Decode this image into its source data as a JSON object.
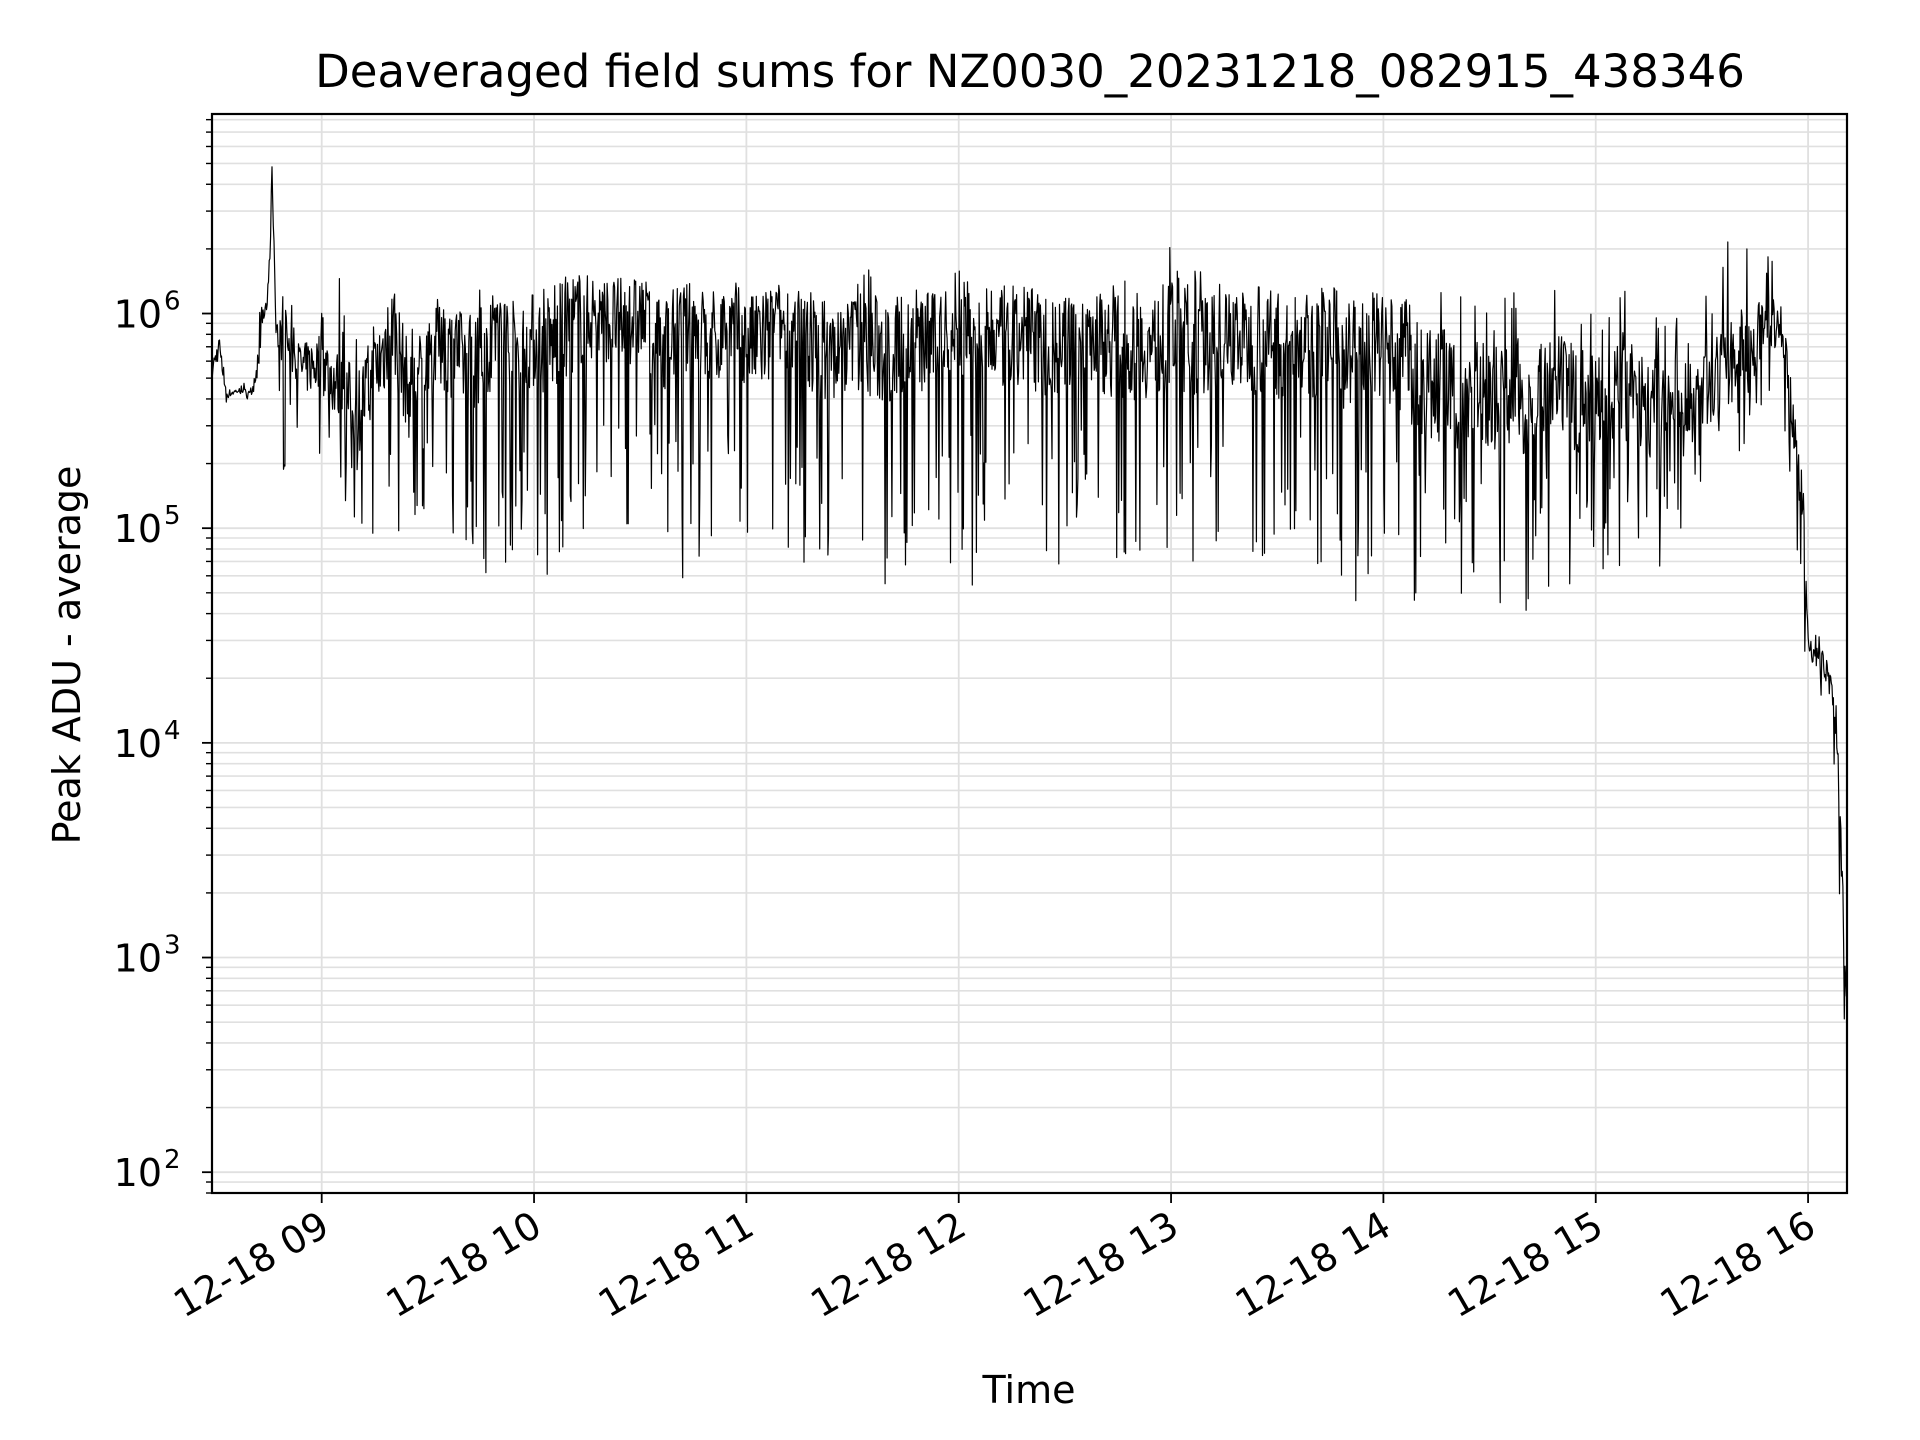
{
  "chart_data": {
    "type": "line",
    "title": "Deaveraged field sums for NZ0030_20231218_082915_438346",
    "xlabel": "Time",
    "ylabel": "Peak ADU - average",
    "yscale": "log",
    "ylim": [
      80,
      8500000
    ],
    "xlim": [
      "2023-12-18 08:29",
      "2023-12-18 16:11"
    ],
    "grid": true,
    "line_color": "#000000",
    "grid_color": "#e0e0e0",
    "x_ticks": [
      {
        "value": "2023-12-18 09:00",
        "label": "12-18 09"
      },
      {
        "value": "2023-12-18 10:00",
        "label": "12-18 10"
      },
      {
        "value": "2023-12-18 11:00",
        "label": "12-18 11"
      },
      {
        "value": "2023-12-18 12:00",
        "label": "12-18 12"
      },
      {
        "value": "2023-12-18 13:00",
        "label": "12-18 13"
      },
      {
        "value": "2023-12-18 14:00",
        "label": "12-18 14"
      },
      {
        "value": "2023-12-18 15:00",
        "label": "12-18 15"
      },
      {
        "value": "2023-12-18 16:00",
        "label": "12-18 16"
      }
    ],
    "y_ticks": [
      {
        "value": 100,
        "base": "10",
        "exp": "2"
      },
      {
        "value": 1000,
        "base": "10",
        "exp": "3"
      },
      {
        "value": 10000,
        "base": "10",
        "exp": "4"
      },
      {
        "value": 100000,
        "base": "10",
        "exp": "5"
      },
      {
        "value": 1000000,
        "base": "10",
        "exp": "6"
      }
    ],
    "series": [
      {
        "x": [
          "2023-12-18 08:29",
          "2023-12-18 08:31",
          "2023-12-18 08:33",
          "2023-12-18 08:35",
          "2023-12-18 08:37",
          "2023-12-18 08:39",
          "2023-12-18 08:41",
          "2023-12-18 08:43",
          "2023-12-18 08:45",
          "2023-12-18 08:46",
          "2023-12-18 08:47",
          "2023-12-18 08:48",
          "2023-12-18 08:49",
          "2023-12-18 08:51",
          "2023-12-18 08:55",
          "2023-12-18 09:00",
          "2023-12-18 09:05",
          "2023-12-18 09:10",
          "2023-12-18 09:15",
          "2023-12-18 09:20",
          "2023-12-18 09:25",
          "2023-12-18 09:30",
          "2023-12-18 09:35",
          "2023-12-18 09:40",
          "2023-12-18 09:45",
          "2023-12-18 09:50",
          "2023-12-18 09:55",
          "2023-12-18 10:00",
          "2023-12-18 10:05",
          "2023-12-18 10:10",
          "2023-12-18 10:15",
          "2023-12-18 10:20",
          "2023-12-18 10:25",
          "2023-12-18 10:30",
          "2023-12-18 10:35",
          "2023-12-18 10:40",
          "2023-12-18 10:45",
          "2023-12-18 10:50",
          "2023-12-18 10:55",
          "2023-12-18 11:00",
          "2023-12-18 11:05",
          "2023-12-18 11:10",
          "2023-12-18 11:15",
          "2023-12-18 11:20",
          "2023-12-18 11:25",
          "2023-12-18 11:30",
          "2023-12-18 11:35",
          "2023-12-18 11:40",
          "2023-12-18 11:45",
          "2023-12-18 11:50",
          "2023-12-18 11:55",
          "2023-12-18 12:00",
          "2023-12-18 12:05",
          "2023-12-18 12:10",
          "2023-12-18 12:15",
          "2023-12-18 12:20",
          "2023-12-18 12:25",
          "2023-12-18 12:30",
          "2023-12-18 12:35",
          "2023-12-18 12:40",
          "2023-12-18 12:45",
          "2023-12-18 12:50",
          "2023-12-18 12:55",
          "2023-12-18 13:00",
          "2023-12-18 13:05",
          "2023-12-18 13:10",
          "2023-12-18 13:15",
          "2023-12-18 13:20",
          "2023-12-18 13:25",
          "2023-12-18 13:30",
          "2023-12-18 13:35",
          "2023-12-18 13:40",
          "2023-12-18 13:45",
          "2023-12-18 13:50",
          "2023-12-18 13:55",
          "2023-12-18 14:00",
          "2023-12-18 14:05",
          "2023-12-18 14:10",
          "2023-12-18 14:15",
          "2023-12-18 14:20",
          "2023-12-18 14:25",
          "2023-12-18 14:30",
          "2023-12-18 14:35",
          "2023-12-18 14:40",
          "2023-12-18 14:45",
          "2023-12-18 14:50",
          "2023-12-18 14:55",
          "2023-12-18 15:00",
          "2023-12-18 15:05",
          "2023-12-18 15:10",
          "2023-12-18 15:15",
          "2023-12-18 15:20",
          "2023-12-18 15:25",
          "2023-12-18 15:30",
          "2023-12-18 15:35",
          "2023-12-18 15:40",
          "2023-12-18 15:45",
          "2023-12-18 15:50",
          "2023-12-18 15:52",
          "2023-12-18 15:54",
          "2023-12-18 15:56",
          "2023-12-18 15:58",
          "2023-12-18 15:59",
          "2023-12-18 16:00",
          "2023-12-18 16:02",
          "2023-12-18 16:04",
          "2023-12-18 16:06",
          "2023-12-18 16:08",
          "2023-12-18 16:09",
          "2023-12-18 16:10",
          "2023-12-18 16:11"
        ],
        "y": [
          550000,
          700000,
          420000,
          430000,
          440000,
          430000,
          450000,
          900000,
          1200000,
          5200000,
          950000,
          700000,
          900000,
          650000,
          550000,
          600000,
          450000,
          350000,
          500000,
          900000,
          400000,
          650000,
          700000,
          600000,
          650000,
          800000,
          700000,
          750000,
          700000,
          900000,
          1000000,
          950000,
          900000,
          1000000,
          700000,
          800000,
          850000,
          650000,
          900000,
          750000,
          700000,
          900000,
          750000,
          700000,
          650000,
          750000,
          700000,
          650000,
          750000,
          700000,
          800000,
          850000,
          800000,
          750000,
          700000,
          800000,
          650000,
          700000,
          800000,
          750000,
          700000,
          650000,
          700000,
          800000,
          750000,
          700000,
          800000,
          750000,
          700000,
          700000,
          650000,
          700000,
          750000,
          650000,
          700000,
          700000,
          600000,
          500000,
          450000,
          400000,
          450000,
          400000,
          450000,
          400000,
          400000,
          450000,
          400000,
          450000,
          400000,
          450000,
          350000,
          400000,
          350000,
          450000,
          500000,
          650000,
          800000,
          900000,
          800000,
          600000,
          300000,
          150000,
          90000,
          30000,
          25000,
          24000,
          20000,
          12000,
          5000,
          1500,
          600
        ],
        "envelope_high": [
          700000,
          800000,
          500000,
          500000,
          480000,
          470000,
          500000,
          1400000,
          1500000,
          5200000,
          1200000,
          1100000,
          1200000,
          1100000,
          1200000,
          1400000,
          1500000,
          1500000,
          1500000,
          1400000,
          1300000,
          1200000,
          1200000,
          1300000,
          1300000,
          1200000,
          1300000,
          1300000,
          1400000,
          1500000,
          1500000,
          1400000,
          1500000,
          1400000,
          1400000,
          1300000,
          1400000,
          1300000,
          1400000,
          1400000,
          1300000,
          1400000,
          1300000,
          1400000,
          1300000,
          1400000,
          1700000,
          1400000,
          1300000,
          1400000,
          1300000,
          1700000,
          1400000,
          1300000,
          1400000,
          1500000,
          1300000,
          1400000,
          1300000,
          1400000,
          1800000,
          1400000,
          1300000,
          2100000,
          2200000,
          1400000,
          1500000,
          1300000,
          1400000,
          1500000,
          1400000,
          1300000,
          1400000,
          1500000,
          1500000,
          1300000,
          1300000,
          1200000,
          1400000,
          1200000,
          1300000,
          1300000,
          1200000,
          1400000,
          1500000,
          1200000,
          1300000,
          1200000,
          1400000,
          1300000,
          1300000,
          1200000,
          1300000,
          1400000,
          2000000,
          2400000,
          2500000,
          2300000,
          1200000,
          800000,
          500000,
          300000,
          120000,
          40000,
          35000,
          32000,
          28000,
          15000,
          6000,
          2000,
          700
        ],
        "envelope_low": [
          420000,
          400000,
          380000,
          400000,
          420000,
          400000,
          420000,
          500000,
          600000,
          1000000,
          600000,
          300000,
          150000,
          350000,
          250000,
          200000,
          150000,
          100000,
          70000,
          55000,
          80000,
          100000,
          80000,
          60000,
          50000,
          60000,
          80000,
          60000,
          50000,
          60000,
          80000,
          100000,
          90000,
          80000,
          90000,
          60000,
          55000,
          80000,
          100000,
          70000,
          60000,
          90000,
          60000,
          45000,
          70000,
          80000,
          60000,
          40000,
          60000,
          70000,
          80000,
          60000,
          50000,
          80000,
          70000,
          60000,
          50000,
          70000,
          80000,
          60000,
          70000,
          80000,
          60000,
          50000,
          60000,
          80000,
          70000,
          60000,
          70000,
          60000,
          80000,
          60000,
          50000,
          40000,
          45000,
          50000,
          45000,
          40000,
          38000,
          40000,
          45000,
          42000,
          45000,
          40000,
          45000,
          50000,
          45000,
          55000,
          55000,
          60000,
          55000,
          60000,
          70000,
          100000,
          150000,
          200000,
          300000,
          350000,
          400000,
          250000,
          100000,
          60000,
          25000,
          18000,
          18000,
          16000,
          10000,
          4000,
          1200,
          500,
          500
        ]
      }
    ]
  }
}
